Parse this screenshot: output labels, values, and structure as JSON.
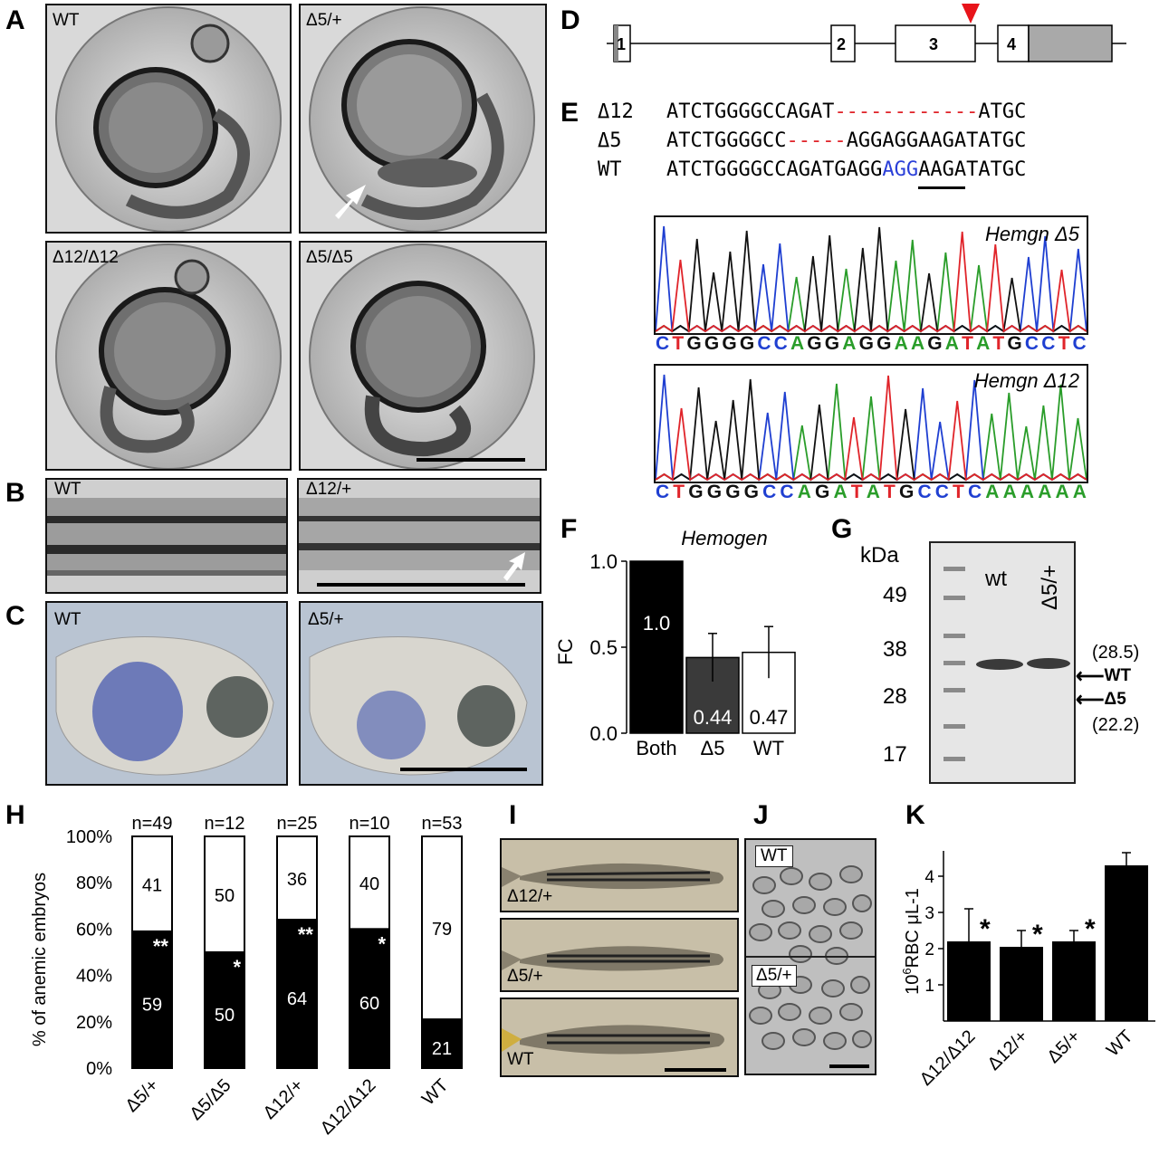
{
  "panels": {
    "A": "A",
    "B": "B",
    "C": "C",
    "D": "D",
    "E": "E",
    "F": "F",
    "G": "G",
    "H": "H",
    "I": "I",
    "J": "J",
    "K": "K"
  },
  "panel_a": {
    "tl": "WT",
    "tr": "Δ5/+",
    "bl": "Δ12/Δ12",
    "br": "Δ5/Δ5"
  },
  "panel_b": {
    "left": "WT",
    "right": "Δ12/+"
  },
  "panel_c": {
    "left": "WT",
    "right": "Δ5/+"
  },
  "panel_d": {
    "exons": [
      "1",
      "2",
      "3",
      "4"
    ]
  },
  "panel_e": {
    "rows": [
      {
        "name": "Δ12",
        "seq_a": "ATCTGGGGCCAGAT",
        "gap": "------------",
        "seq_b": "ATGC"
      },
      {
        "name": "Δ5",
        "seq_a": "ATCTGGGGCC",
        "gap": "-----",
        "seq_b": "AGGAGGAAGATATGC"
      },
      {
        "name": "WT",
        "seq_a": "ATCTGGGGCCAGATGAGG",
        "pam": "AGG",
        "seq_b": "AAGATATGC"
      }
    ],
    "trace1": {
      "title": "Hemgn Δ5",
      "bases": "CTGGGGCCAGGAGGAAGATATGCCTC"
    },
    "trace2": {
      "title": "Hemgn Δ12",
      "bases": "CTGGGGCCAGATATGCCTCAAAAAA"
    }
  },
  "panel_g": {
    "unit": "kDa",
    "markers": [
      "49",
      "38",
      "28",
      "17"
    ],
    "lanes": [
      "wt",
      "Δ5/+"
    ],
    "wt_label": "WT",
    "wt_size": "(28.5)",
    "d5_label": "Δ5",
    "d5_size": "(22.2)"
  },
  "panel_i": {
    "labels": [
      "Δ12/+",
      "Δ5/+",
      "WT"
    ]
  },
  "panel_j": {
    "labels": [
      "WT",
      "Δ5/+"
    ]
  },
  "colors": {
    "A": "#2a9d2a",
    "C": "#1f3fd1",
    "G": "#111111",
    "T": "#e0242a",
    "pam": "#2a3fd8",
    "gap": "#e0242a",
    "arrow": "#e8141a"
  },
  "chart_data": [
    {
      "panel": "F",
      "type": "bar",
      "title": "Hemogen",
      "ylabel": "FC",
      "categories": [
        "Both",
        "Δ5",
        "WT"
      ],
      "values": [
        1.0,
        0.44,
        0.47
      ],
      "value_labels": [
        "1.0",
        "0.44",
        "0.47"
      ],
      "errors": [
        0,
        0.14,
        0.15
      ],
      "ylim": [
        0,
        1.0
      ],
      "yticks": [
        "0.0",
        "0.5",
        "1.0"
      ],
      "bar_colors": [
        "#000000",
        "#3a3a3a",
        "#ffffff"
      ]
    },
    {
      "panel": "H",
      "type": "bar",
      "stacked": true,
      "ylabel": "% of anemic embryos",
      "categories": [
        "Δ5/+",
        "Δ5/Δ5",
        "Δ12/+",
        "Δ12/Δ12",
        "WT"
      ],
      "n_labels": [
        "n=49",
        "n=12",
        "n=25",
        "n=10",
        "n=53"
      ],
      "series": [
        {
          "values": [
            59,
            50,
            64,
            60,
            21
          ]
        },
        {
          "values": [
            41,
            50,
            36,
            40,
            79
          ]
        }
      ],
      "significance": [
        "**",
        "*",
        "**",
        "*",
        ""
      ],
      "ylim": [
        0,
        100
      ],
      "yticks": [
        "0%",
        "20%",
        "40%",
        "60%",
        "80%",
        "100%"
      ]
    },
    {
      "panel": "K",
      "type": "bar",
      "ylabel": "10⁶RBC μL-1",
      "ylabel_sup": "6",
      "ylabel_pre": "10",
      "ylabel_post": "RBC μL-1",
      "categories": [
        "Δ12/Δ12",
        "Δ12/+",
        "Δ5/+",
        "WT"
      ],
      "values": [
        2.2,
        2.05,
        2.2,
        4.3
      ],
      "errors": [
        0.9,
        0.45,
        0.3,
        0.35
      ],
      "significance": [
        "*",
        "*",
        "*",
        ""
      ],
      "ylim": [
        0,
        4.7
      ],
      "yticks": [
        "1",
        "2",
        "3",
        "4"
      ]
    }
  ]
}
